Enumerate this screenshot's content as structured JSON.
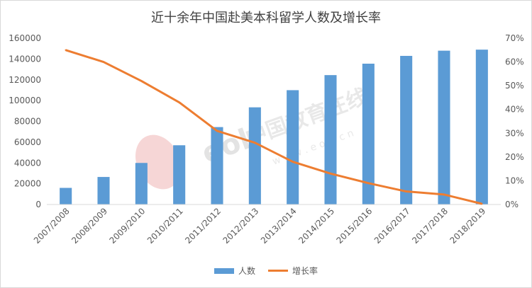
{
  "chart_data": {
    "type": "bar",
    "title": "近十余年中国赴美本科留学人数及增长率",
    "categories": [
      "2007/2008",
      "2008/2009",
      "2009/2010",
      "2010/2011",
      "2011/2012",
      "2012/2013",
      "2013/2014",
      "2014/2015",
      "2015/2016",
      "2016/2017",
      "2017/2018",
      "2018/2019"
    ],
    "series": [
      {
        "name": "人数",
        "type": "bar",
        "axis": "left",
        "color": "#5b9bd5",
        "values": [
          16000,
          26500,
          40000,
          57000,
          74500,
          93500,
          110000,
          124500,
          135500,
          143000,
          148000,
          149000
        ]
      },
      {
        "name": "增长率",
        "type": "line",
        "axis": "right",
        "color": "#ed7d31",
        "values": [
          0.65,
          0.6,
          0.52,
          0.43,
          0.31,
          0.26,
          0.18,
          0.13,
          0.09,
          0.055,
          0.042,
          0.003
        ]
      }
    ],
    "y_left": {
      "min": 0,
      "max": 160000,
      "ticks": [
        "0",
        "20000",
        "40000",
        "60000",
        "80000",
        "100000",
        "120000",
        "140000",
        "160000"
      ]
    },
    "y_right": {
      "min": 0,
      "max": 0.7,
      "ticks": [
        "0%",
        "10%",
        "20%",
        "30%",
        "40%",
        "50%",
        "60%",
        "70%"
      ]
    },
    "grid": false,
    "legend_position": "bottom"
  },
  "watermark": {
    "text": "中国教育在线",
    "subtext": "w w w . e o l . c n"
  }
}
